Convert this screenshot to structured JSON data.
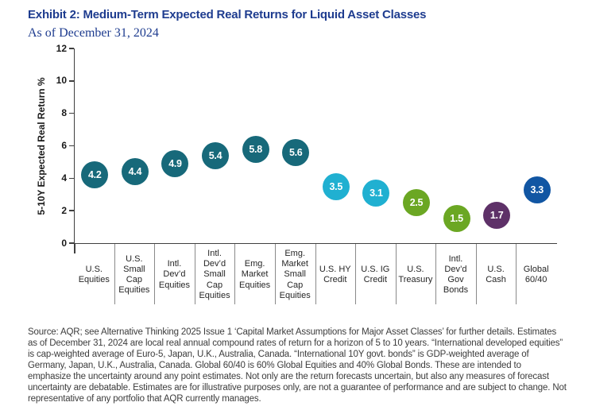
{
  "chart_data": {
    "type": "scatter",
    "title": "Exhibit 2: Medium-Term Expected Real Returns for Liquid Asset Classes",
    "subtitle": "As of December 31, 2024",
    "ylabel": "5-10Y Expected Real Return %",
    "ylim": [
      0,
      12
    ],
    "yticks": [
      0,
      2,
      4,
      6,
      8,
      10,
      12
    ],
    "grid": false,
    "legend": false,
    "categories": [
      "U.S.\nEquities",
      "U.S.\nSmall\nCap\nEquities",
      "Intl.\nDev’d\nEquities",
      "Intl.\nDev’d\nSmall\nCap\nEquities",
      "Emg.\nMarket\nEquities",
      "Emg.\nMarket\nSmall\nCap\nEquities",
      "U.S. HY\nCredit",
      "U.S. IG\nCredit",
      "U.S.\nTreasury",
      "Intl.\nDev’d\nGov\nBonds",
      "U.S.\nCash",
      "Global\n60/40"
    ],
    "values": [
      4.2,
      4.4,
      4.9,
      5.4,
      5.8,
      5.6,
      3.5,
      3.1,
      2.5,
      1.5,
      1.7,
      3.3
    ],
    "point_colors": [
      "#17697a",
      "#17697a",
      "#17697a",
      "#17697a",
      "#17697a",
      "#17697a",
      "#20b0d1",
      "#20b0d1",
      "#6ba723",
      "#6ba723",
      "#5e3168",
      "#1156a3"
    ]
  },
  "colors": {
    "title_blue": "#1e3c8f",
    "axis": "#3f3f3f",
    "separator": "#8a8a8a",
    "equities_teal": "#17697a",
    "credit_cyan": "#20b0d1",
    "govt_green": "#6ba723",
    "cash_purple": "#5e3168",
    "global_blue": "#1156a3"
  },
  "footer": {
    "source_note": "Source: AQR; see Alternative Thinking 2025 Issue 1 ‘Capital Market Assumptions for Major Asset Classes’ for further details. Estimates as of December 31, 2024 are local real annual compound rates of return for a horizon of 5 to 10 years. “International developed equities” is cap-weighted average of Euro-5, Japan, U.K., Australia, Canada. “International 10Y govt. bonds” is GDP-weighted average of Germany, Japan, U.K., Australia, Canada. Global 60/40 is 60% Global Equities and 40% Global Bonds. These are intended to emphasize the uncertainty around any point estimates. Not only are the return forecasts uncertain, but also any measures of forecast uncertainty are debatable. Estimates are for illustrative purposes only, are not a guarantee of performance and are subject to change. Not representative of any portfolio that AQR currently manages."
  }
}
